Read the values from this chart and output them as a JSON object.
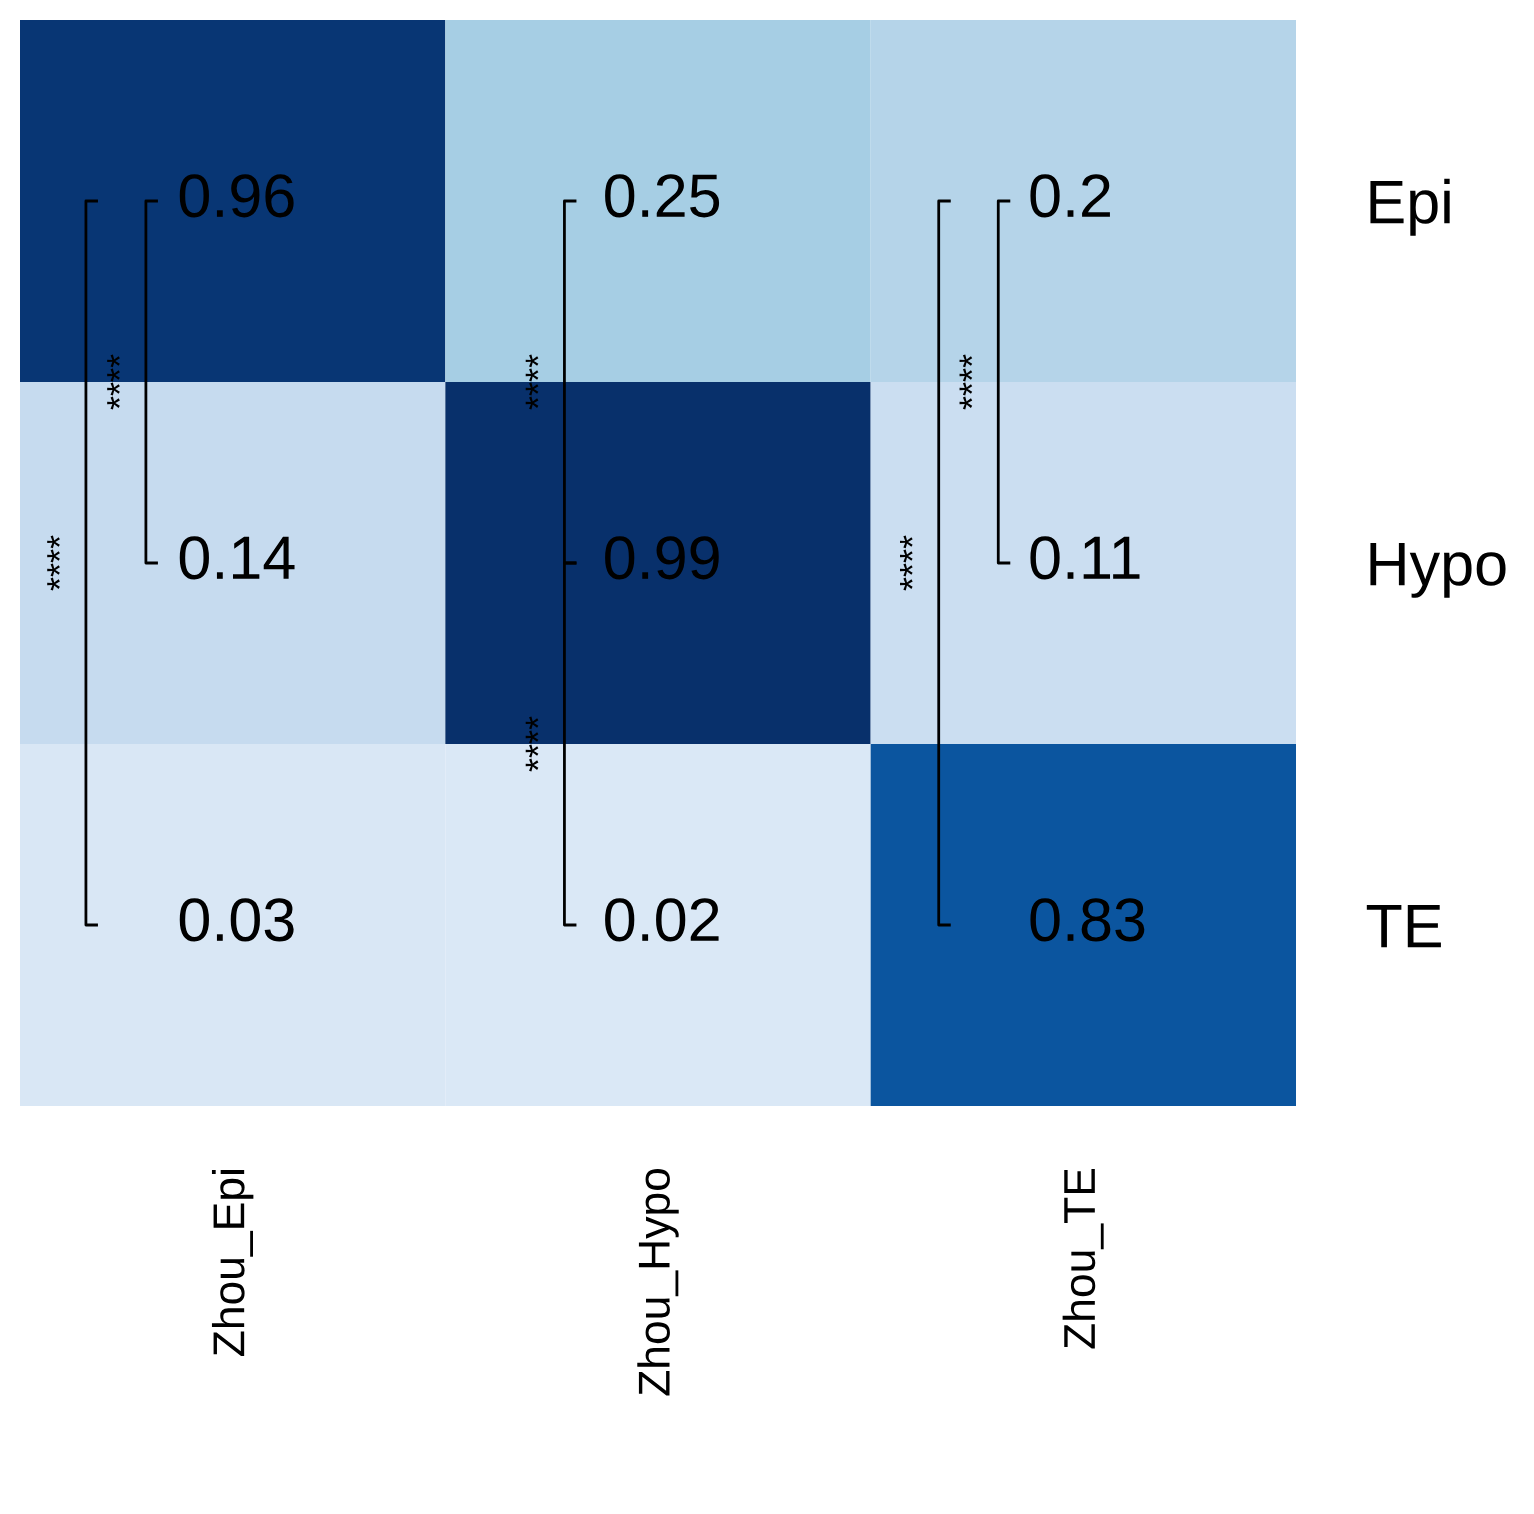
{
  "chart_data": {
    "type": "heatmap",
    "categories": [
      "Zhou_Epi",
      "Zhou_Hypo",
      "Zhou_TE"
    ],
    "y_categories": [
      "Epi",
      "Hypo",
      "TE"
    ],
    "cells": [
      [
        0.96,
        0.25,
        0.2
      ],
      [
        0.14,
        0.99,
        0.11
      ],
      [
        0.03,
        0.02,
        0.83
      ]
    ],
    "data_labels": true,
    "annotations": [
      "****",
      "****",
      "****",
      "****",
      "****",
      "****"
    ]
  }
}
